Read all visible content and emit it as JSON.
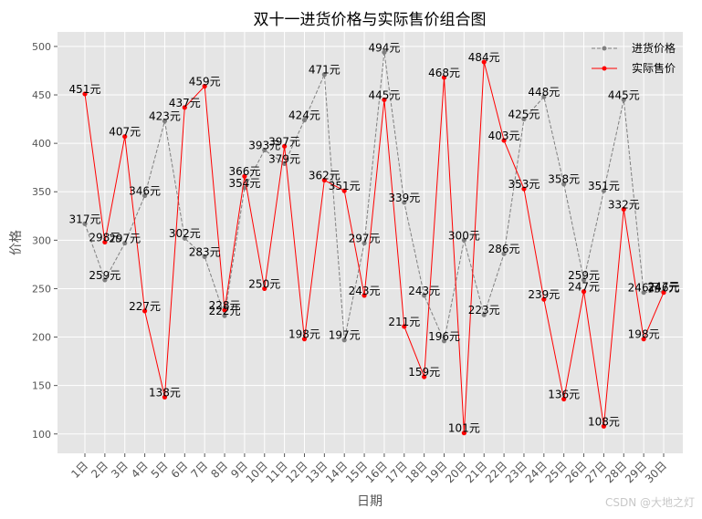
{
  "chart_data": {
    "type": "line",
    "title": "双十一进货价格与实际售价组合图",
    "xlabel": "日期",
    "ylabel": "价格",
    "ylim": [
      80,
      515
    ],
    "yticks": [
      100,
      150,
      200,
      250,
      300,
      350,
      400,
      450,
      500
    ],
    "grid": true,
    "legend_position": "top-right",
    "categories": [
      "1日",
      "2日",
      "3日",
      "4日",
      "5日",
      "6日",
      "7日",
      "8日",
      "9日",
      "10日",
      "11日",
      "12日",
      "13日",
      "14日",
      "15日",
      "16日",
      "17日",
      "18日",
      "19日",
      "20日",
      "21日",
      "22日",
      "23日",
      "24日",
      "25日",
      "26日",
      "27日",
      "28日",
      "29日",
      "30日"
    ],
    "label_suffix": "元",
    "series": [
      {
        "name": "进货价格",
        "color": "#808080",
        "line_style": "dashed",
        "values": [
          317,
          259,
          297,
          346,
          423,
          302,
          283,
          222,
          354,
          393,
          379,
          424,
          471,
          197,
          297,
          494,
          339,
          243,
          196,
          300,
          223,
          286,
          425,
          448,
          358,
          259,
          351,
          445,
          246,
          247
        ]
      },
      {
        "name": "实际售价",
        "color": "#ff0000",
        "line_style": "solid",
        "values": [
          451,
          298,
          407,
          227,
          138,
          437,
          459,
          228,
          366,
          250,
          397,
          198,
          362,
          351,
          243,
          445,
          211,
          159,
          468,
          101,
          484,
          403,
          353,
          239,
          136,
          247,
          108,
          332,
          198,
          246
        ]
      }
    ]
  },
  "watermark": "CSDN @大地之灯"
}
